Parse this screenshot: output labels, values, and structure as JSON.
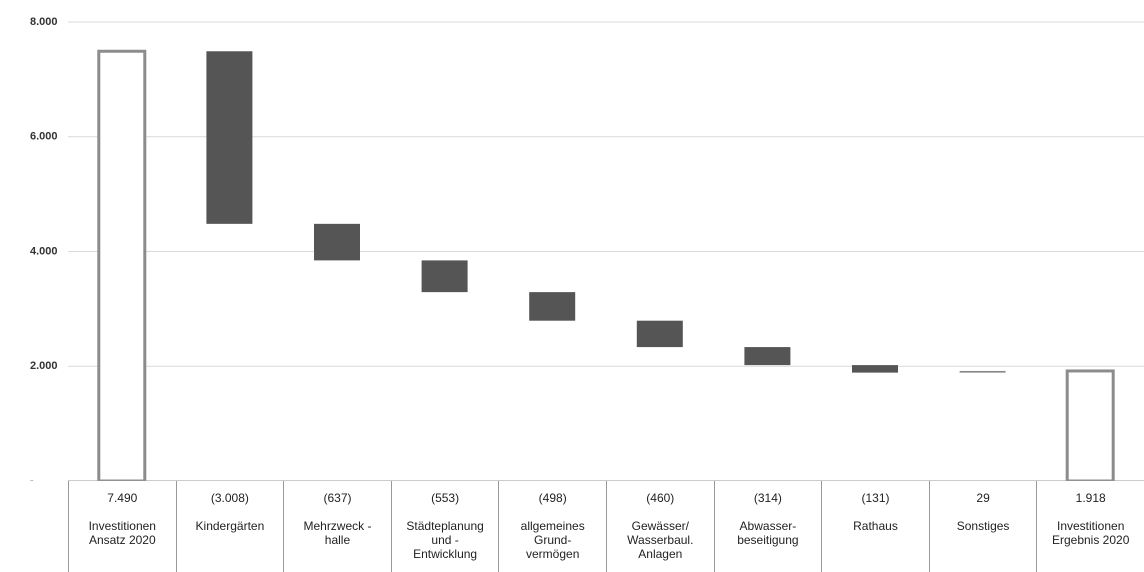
{
  "chart_data": {
    "type": "waterfall",
    "categories": [
      "Investitionen\nAnsatz 2020",
      "Kindergärten",
      "Mehrzweck -\nhalle",
      "Städteplanung\nund -\nEntwicklung",
      "allgemeines\nGrund-\nvermögen",
      "Gewässer/\nWasserbaul.\nAnlagen",
      "Abwasser-\nbeseitigung",
      "Rathaus",
      "Sonstiges",
      "Investitionen\nErgebnis 2020"
    ],
    "values": [
      7490,
      -3008,
      -637,
      -553,
      -498,
      -460,
      -314,
      -131,
      29,
      1918
    ],
    "value_labels": [
      "7.490",
      "(3.008)",
      "(637)",
      "(553)",
      "(498)",
      "(460)",
      "(314)",
      "(131)",
      "29",
      "1.918"
    ],
    "measure": [
      "absolute",
      "relative",
      "relative",
      "relative",
      "relative",
      "relative",
      "relative",
      "relative",
      "relative",
      "absolute"
    ],
    "total_color": "#ffffff",
    "total_outline": "#8c8c8c",
    "delta_color": "#555555",
    "ylim": [
      0,
      8000
    ],
    "yticks": [
      {
        "value": 0,
        "label": "-"
      },
      {
        "value": 2000,
        "label": "2.000"
      },
      {
        "value": 4000,
        "label": "4.000"
      },
      {
        "value": 6000,
        "label": "6.000"
      },
      {
        "value": 8000,
        "label": "8.000"
      }
    ],
    "grid": true
  }
}
